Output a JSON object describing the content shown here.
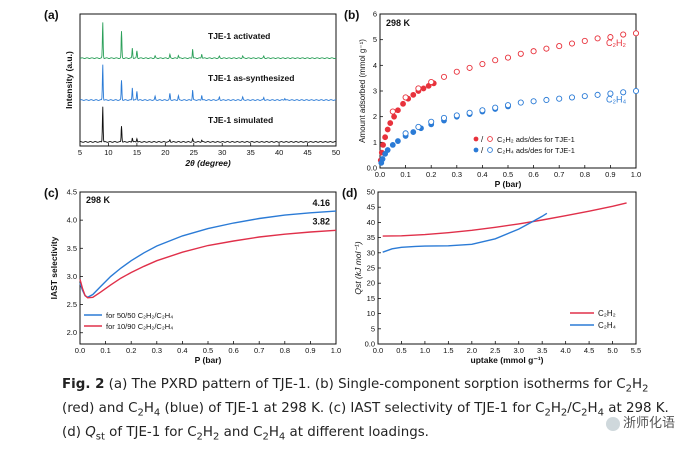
{
  "figure": {
    "caption_lead": "Fig. 2",
    "caption_parts": [
      "(a) The PXRD pattern of TJE-1. (b) Single-component sorption isotherms for C",
      "2",
      "H",
      "2",
      " (red) and C",
      "2",
      "H",
      "4",
      " (blue) of TJE-1 at 298 K. (c) IAST selectivity of TJE-1 for C",
      "2",
      "H",
      "2",
      "/C",
      "2",
      "H",
      "4",
      " at 298 K. (d) ",
      "Q",
      "st",
      " of TJE-1 for C",
      "2",
      "H",
      "2",
      " and C",
      "2",
      "H",
      "4",
      " at different loadings."
    ],
    "caption_sub_flags": [
      0,
      1,
      0,
      1,
      0,
      1,
      0,
      1,
      0,
      1,
      0,
      1,
      0,
      1,
      0,
      1,
      0,
      2,
      1,
      0,
      1,
      0,
      1,
      0,
      1,
      0,
      1,
      0
    ],
    "watermark": "浙师化语"
  },
  "chart_data": [
    {
      "id": "a",
      "panel_label": "(a)",
      "type": "line",
      "xlabel": "2θ (degree)",
      "ylabel": "Intensity (a.u.)",
      "xlim": [
        5,
        50
      ],
      "xticks": [
        5,
        10,
        15,
        20,
        25,
        30,
        35,
        40,
        45,
        50
      ],
      "series": [
        {
          "name": "TJE-1 activated",
          "color": "#2ca05a",
          "offset": 2.0,
          "peaks": [
            [
              9.0,
              1.0
            ],
            [
              12.3,
              0.75
            ],
            [
              14.2,
              0.28
            ],
            [
              15.0,
              0.2
            ],
            [
              18.2,
              0.06
            ],
            [
              20.8,
              0.1
            ],
            [
              22.3,
              0.08
            ],
            [
              24.8,
              0.26
            ],
            [
              26.4,
              0.12
            ],
            [
              29.5,
              0.05
            ],
            [
              33.6,
              0.06
            ],
            [
              37.3,
              0.05
            ]
          ]
        },
        {
          "name": "TJE-1 as-synthesized",
          "color": "#2b7bd6",
          "offset": 1.0,
          "peaks": [
            [
              9.0,
              1.0
            ],
            [
              12.3,
              0.55
            ],
            [
              14.2,
              0.35
            ],
            [
              15.0,
              0.25
            ],
            [
              18.2,
              0.1
            ],
            [
              20.8,
              0.18
            ],
            [
              22.3,
              0.12
            ],
            [
              24.8,
              0.28
            ],
            [
              26.4,
              0.14
            ],
            [
              29.5,
              0.08
            ],
            [
              33.6,
              0.08
            ],
            [
              37.3,
              0.07
            ],
            [
              41.0,
              0.05
            ]
          ]
        },
        {
          "name": "TJE-1 simulated",
          "color": "#111111",
          "offset": 0.0,
          "peaks": [
            [
              9.0,
              1.0
            ],
            [
              12.3,
              0.45
            ],
            [
              14.2,
              0.12
            ],
            [
              15.0,
              0.1
            ],
            [
              20.8,
              0.06
            ],
            [
              24.8,
              0.08
            ],
            [
              26.4,
              0.05
            ]
          ]
        }
      ]
    },
    {
      "id": "b",
      "panel_label": "(b)",
      "type": "scatter",
      "annotation": "298 K",
      "xlabel": "P (bar)",
      "ylabel": "Amount adsorbed (mmol g⁻¹)",
      "xlim": [
        0,
        1.0
      ],
      "ylim": [
        0,
        6
      ],
      "xticks": [
        0.0,
        0.1,
        0.2,
        0.3,
        0.4,
        0.5,
        0.6,
        0.7,
        0.8,
        0.9,
        1.0
      ],
      "yticks": [
        0,
        1,
        2,
        3,
        4,
        5,
        6
      ],
      "series": [
        {
          "name": "C₂H₂ ads/des for TJE-1",
          "label": "C₂H₂",
          "color": "#e8323c",
          "ads_x": [
            0.003,
            0.007,
            0.012,
            0.02,
            0.03,
            0.04,
            0.055,
            0.07,
            0.09,
            0.11,
            0.13,
            0.15,
            0.17,
            0.19,
            0.21
          ],
          "ads_y": [
            0.3,
            0.6,
            0.9,
            1.2,
            1.5,
            1.75,
            2.0,
            2.25,
            2.5,
            2.7,
            2.85,
            3.0,
            3.1,
            3.2,
            3.3
          ],
          "des_x": [
            0.05,
            0.1,
            0.15,
            0.2,
            0.25,
            0.3,
            0.35,
            0.4,
            0.45,
            0.5,
            0.55,
            0.6,
            0.65,
            0.7,
            0.75,
            0.8,
            0.85,
            0.9,
            0.95,
            1.0
          ],
          "des_y": [
            2.2,
            2.75,
            3.1,
            3.35,
            3.55,
            3.75,
            3.9,
            4.05,
            4.2,
            4.3,
            4.45,
            4.55,
            4.65,
            4.75,
            4.85,
            4.95,
            5.05,
            5.1,
            5.2,
            5.25
          ]
        },
        {
          "name": "C₂H₄ ads/des for TJE-1",
          "label": "C₂H₄",
          "color": "#2b7bd6",
          "ads_x": [
            0.005,
            0.01,
            0.02,
            0.03,
            0.05,
            0.07,
            0.1,
            0.13,
            0.16,
            0.2,
            0.25,
            0.3,
            0.35,
            0.4,
            0.45,
            0.5
          ],
          "ads_y": [
            0.2,
            0.35,
            0.55,
            0.7,
            0.9,
            1.05,
            1.25,
            1.4,
            1.55,
            1.7,
            1.85,
            2.0,
            2.1,
            2.2,
            2.3,
            2.4
          ],
          "des_x": [
            0.1,
            0.15,
            0.2,
            0.25,
            0.3,
            0.35,
            0.4,
            0.45,
            0.5,
            0.55,
            0.6,
            0.65,
            0.7,
            0.75,
            0.8,
            0.85,
            0.9,
            0.95,
            1.0
          ],
          "des_y": [
            1.35,
            1.6,
            1.8,
            1.95,
            2.05,
            2.15,
            2.25,
            2.35,
            2.45,
            2.55,
            2.6,
            2.65,
            2.7,
            2.75,
            2.8,
            2.85,
            2.9,
            2.95,
            3.0
          ]
        }
      ],
      "legend": "bottom-right"
    },
    {
      "id": "c",
      "panel_label": "(c)",
      "type": "line",
      "annotation": "298 K",
      "xlabel": "P (bar)",
      "ylabel": "IAST selectivity",
      "xlim": [
        0,
        1.0
      ],
      "ylim": [
        1.8,
        4.5
      ],
      "xticks": [
        0.0,
        0.1,
        0.2,
        0.3,
        0.4,
        0.5,
        0.6,
        0.7,
        0.8,
        0.9,
        1.0
      ],
      "yticks": [
        2.0,
        2.5,
        3.0,
        3.5,
        4.0,
        4.5
      ],
      "end_labels": [
        "4.16",
        "3.82"
      ],
      "series": [
        {
          "name": "for 50/50 C₂H₂/C₂H₄",
          "color": "#2b7bd6",
          "x": [
            0.0,
            0.01,
            0.02,
            0.03,
            0.05,
            0.08,
            0.12,
            0.16,
            0.2,
            0.25,
            0.3,
            0.4,
            0.5,
            0.6,
            0.7,
            0.8,
            0.9,
            1.0
          ],
          "y": [
            2.88,
            2.75,
            2.66,
            2.63,
            2.68,
            2.82,
            3.0,
            3.15,
            3.28,
            3.42,
            3.54,
            3.72,
            3.85,
            3.95,
            4.03,
            4.09,
            4.13,
            4.16
          ]
        },
        {
          "name": "for 10/90 C₂H₂/C₂H₄",
          "color": "#e0304a",
          "x": [
            0.0,
            0.01,
            0.02,
            0.03,
            0.05,
            0.08,
            0.12,
            0.16,
            0.2,
            0.25,
            0.3,
            0.4,
            0.5,
            0.6,
            0.7,
            0.8,
            0.9,
            1.0
          ],
          "y": [
            2.95,
            2.78,
            2.66,
            2.62,
            2.63,
            2.72,
            2.85,
            2.97,
            3.07,
            3.18,
            3.28,
            3.43,
            3.55,
            3.63,
            3.7,
            3.75,
            3.79,
            3.82
          ]
        }
      ],
      "legend": "bottom-left"
    },
    {
      "id": "d",
      "panel_label": "(d)",
      "type": "line",
      "xlabel": "uptake (mmol g⁻¹)",
      "ylabel": "Qst (kJ mol⁻¹)",
      "xlim": [
        0,
        5.5
      ],
      "ylim": [
        0,
        50
      ],
      "xticks": [
        0.0,
        0.5,
        1.0,
        1.5,
        2.0,
        2.5,
        3.0,
        3.5,
        4.0,
        4.5,
        5.0,
        5.5
      ],
      "yticks": [
        0,
        5,
        10,
        15,
        20,
        25,
        30,
        35,
        40,
        45,
        50
      ],
      "series": [
        {
          "name": "C₂H₂",
          "color": "#e0304a",
          "x": [
            0.1,
            0.5,
            1.0,
            1.5,
            2.0,
            2.5,
            3.0,
            3.5,
            4.0,
            4.5,
            5.0,
            5.3
          ],
          "y": [
            35.5,
            35.6,
            36.0,
            36.6,
            37.4,
            38.4,
            39.5,
            40.8,
            42.2,
            43.7,
            45.3,
            46.4
          ]
        },
        {
          "name": "C₂H₄",
          "color": "#2b7bd6",
          "x": [
            0.1,
            0.3,
            0.5,
            0.8,
            1.0,
            1.5,
            2.0,
            2.5,
            3.0,
            3.3,
            3.5,
            3.6
          ],
          "y": [
            30.2,
            31.3,
            31.8,
            32.1,
            32.2,
            32.3,
            32.8,
            34.6,
            37.8,
            40.3,
            42.0,
            43.0
          ]
        }
      ],
      "legend": "bottom-right"
    }
  ]
}
